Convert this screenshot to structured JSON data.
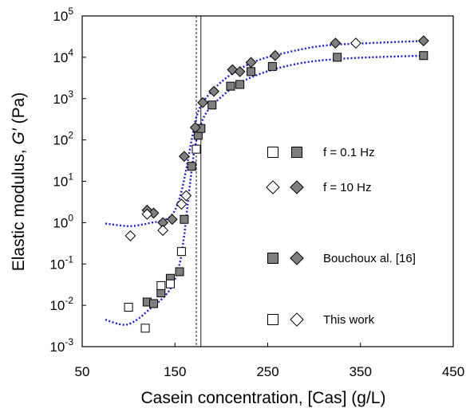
{
  "chart_data": {
    "type": "scatter",
    "xlabel": "Casein concentration, [Cas] (g/L)",
    "ylabel_prefix": "Elastic modulus, ",
    "ylabel_symbol": "G′",
    "ylabel_unit": " (Pa)",
    "xlim": [
      50,
      450
    ],
    "ylim_log10": [
      -3,
      5
    ],
    "y_scale": "log",
    "grid": false,
    "x_ticks": [
      {
        "value": 50,
        "label": "50"
      },
      {
        "value": 150,
        "label": "150"
      },
      {
        "value": 250,
        "label": "250"
      },
      {
        "value": 350,
        "label": "350"
      },
      {
        "value": 450,
        "label": "450"
      }
    ],
    "y_ticks": [
      {
        "value": -3,
        "base": "10",
        "exp": "-3"
      },
      {
        "value": -2,
        "base": "10",
        "exp": "-2"
      },
      {
        "value": -1,
        "base": "10",
        "exp": "-1"
      },
      {
        "value": 0,
        "base": "10",
        "exp": "0"
      },
      {
        "value": 1,
        "base": "10",
        "exp": "1"
      },
      {
        "value": 2,
        "base": "10",
        "exp": "2"
      },
      {
        "value": 3,
        "base": "10",
        "exp": "3"
      },
      {
        "value": 4,
        "base": "10",
        "exp": "4"
      },
      {
        "value": 5,
        "base": "10",
        "exp": "5"
      }
    ],
    "vertical_lines": [
      {
        "x": 173,
        "style": "dashed"
      },
      {
        "x": 178,
        "style": "solid"
      }
    ],
    "series": [
      {
        "marker": "square",
        "fill": "#7f7f7f",
        "points": [
          [
            120,
            0.012
          ],
          [
            127,
            0.011
          ],
          [
            135,
            0.02
          ],
          [
            145,
            0.045
          ],
          [
            155,
            0.065
          ],
          [
            160,
            1.2
          ],
          [
            168,
            23
          ],
          [
            175,
            130
          ],
          [
            178,
            190
          ],
          [
            190,
            700
          ],
          [
            210,
            2000
          ],
          [
            220,
            2200
          ],
          [
            232,
            4500
          ],
          [
            255,
            6000
          ],
          [
            325,
            10000
          ],
          [
            418,
            11000
          ]
        ]
      },
      {
        "marker": "diamond",
        "fill": "#7f7f7f",
        "points": [
          [
            120,
            2.0
          ],
          [
            127,
            1.7
          ],
          [
            137,
            1.0
          ],
          [
            147,
            1.2
          ],
          [
            160,
            40
          ],
          [
            172,
            200
          ],
          [
            180,
            800
          ],
          [
            192,
            1500
          ],
          [
            212,
            5000
          ],
          [
            220,
            4500
          ],
          [
            232,
            7500
          ],
          [
            258,
            11000
          ],
          [
            323,
            22000
          ],
          [
            418,
            25000
          ]
        ]
      },
      {
        "marker": "square",
        "fill": "#ffffff",
        "points": [
          [
            100,
            0.009
          ],
          [
            118,
            0.0028
          ],
          [
            135,
            0.03
          ],
          [
            145,
            0.033
          ],
          [
            157,
            0.2
          ],
          [
            173,
            60
          ]
        ]
      },
      {
        "marker": "diamond",
        "fill": "#ffffff",
        "points": [
          [
            102,
            0.48
          ],
          [
            120,
            1.6
          ],
          [
            137,
            0.65
          ],
          [
            157,
            2.8
          ],
          [
            162,
            4.5
          ],
          [
            345,
            22000
          ]
        ]
      }
    ],
    "fit_curves": [
      {
        "color": "#1a1adb",
        "style": "dotted",
        "points": [
          [
            75,
            0.95
          ],
          [
            100,
            0.82
          ],
          [
            115,
            0.9
          ],
          [
            125,
            1.0
          ],
          [
            135,
            1.1
          ],
          [
            145,
            1.4
          ],
          [
            152,
            2.5
          ],
          [
            158,
            7
          ],
          [
            163,
            25
          ],
          [
            168,
            100
          ],
          [
            173,
            350
          ],
          [
            180,
            800
          ],
          [
            195,
            2000
          ],
          [
            215,
            4500
          ],
          [
            240,
            8500
          ],
          [
            270,
            13000
          ],
          [
            310,
            19000
          ],
          [
            360,
            22000
          ],
          [
            420,
            25000
          ]
        ]
      },
      {
        "color": "#1a1adb",
        "style": "dotted",
        "points": [
          [
            75,
            0.0045
          ],
          [
            90,
            0.0035
          ],
          [
            100,
            0.0035
          ],
          [
            112,
            0.005
          ],
          [
            125,
            0.009
          ],
          [
            137,
            0.015
          ],
          [
            147,
            0.03
          ],
          [
            155,
            0.1
          ],
          [
            160,
            0.5
          ],
          [
            165,
            5
          ],
          [
            170,
            40
          ],
          [
            176,
            180
          ],
          [
            185,
            500
          ],
          [
            200,
            1100
          ],
          [
            220,
            2400
          ],
          [
            250,
            4600
          ],
          [
            290,
            7500
          ],
          [
            340,
            9500
          ],
          [
            420,
            11000
          ]
        ]
      }
    ],
    "legend": [
      {
        "label": "f = 0.1 Hz",
        "markers": [
          {
            "shape": "square",
            "fill": "#ffffff"
          },
          {
            "shape": "square",
            "fill": "#7f7f7f"
          }
        ]
      },
      {
        "label": "f = 10 Hz",
        "markers": [
          {
            "shape": "diamond",
            "fill": "#ffffff"
          },
          {
            "shape": "diamond",
            "fill": "#7f7f7f"
          }
        ]
      },
      {
        "label": "Bouchoux al. [16]",
        "markers": [
          {
            "shape": "square",
            "fill": "#7f7f7f"
          },
          {
            "shape": "diamond",
            "fill": "#7f7f7f"
          }
        ]
      },
      {
        "label": "This work",
        "markers": [
          {
            "shape": "square",
            "fill": "#ffffff"
          },
          {
            "shape": "diamond",
            "fill": "#ffffff"
          }
        ]
      }
    ]
  }
}
